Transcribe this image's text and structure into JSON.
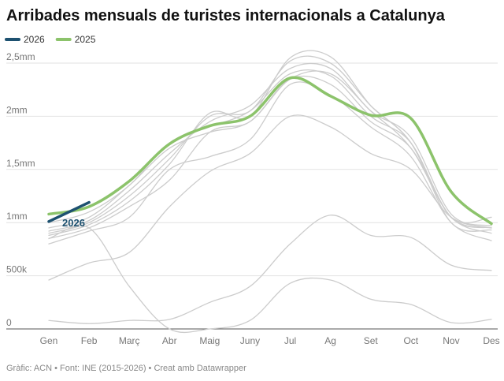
{
  "chart_data": {
    "type": "line",
    "title": "Arribades mensuals de turistes internacionals a Catalunya",
    "source": "Gràfic: ACN • Font: INE (2015-2026) • Creat amb Datawrapper",
    "annotation": "2026",
    "categories": [
      "Gen",
      "Feb",
      "Març",
      "Abr",
      "Maig",
      "Juny",
      "Jul",
      "Ag",
      "Set",
      "Oct",
      "Nov",
      "Des"
    ],
    "ylim": [
      0,
      2500000
    ],
    "yticks": [
      0,
      {
        "value": 500000,
        "label": "500k"
      },
      {
        "value": 1000000,
        "label": "1mm"
      },
      {
        "value": 1500000,
        "label": "1,5mm"
      },
      {
        "value": 2000000,
        "label": "2mm"
      },
      {
        "value": 2500000,
        "label": "2,5mm"
      }
    ],
    "grid": true,
    "series": [
      {
        "name": "2026",
        "color": "#1d5170",
        "values": [
          1010000,
          1190000,
          null,
          null,
          null,
          null,
          null,
          null,
          null,
          null,
          null,
          null
        ]
      },
      {
        "name": "2025",
        "color": "#8cc36b",
        "values": [
          1080000,
          1150000,
          1390000,
          1740000,
          1910000,
          2000000,
          2360000,
          2190000,
          2010000,
          1980000,
          1290000,
          990000
        ]
      },
      {
        "color": "#cccccc",
        "values": [
          800000,
          920000,
          1050000,
          1500000,
          1620000,
          1780000,
          2300000,
          2200000,
          1900000,
          1620000,
          1000000,
          830000
        ]
      },
      {
        "color": "#cccccc",
        "values": [
          850000,
          950000,
          1150000,
          1400000,
          1850000,
          1950000,
          2350000,
          2400000,
          2050000,
          1700000,
          1050000,
          900000
        ]
      },
      {
        "color": "#cccccc",
        "values": [
          880000,
          980000,
          1200000,
          1550000,
          2030000,
          2000000,
          2550000,
          2560000,
          2100000,
          1750000,
          1000000,
          930000
        ]
      },
      {
        "color": "#cccccc",
        "values": [
          900000,
          1000000,
          1250000,
          1600000,
          2000000,
          2050000,
          2520000,
          2500000,
          2100000,
          1750000,
          1050000,
          950000
        ]
      },
      {
        "color": "#cccccc",
        "values": [
          920000,
          1020000,
          1300000,
          1650000,
          1950000,
          2100000,
          2450000,
          2450000,
          2050000,
          1800000,
          1080000,
          970000
        ]
      },
      {
        "color": "#cccccc",
        "values": [
          850000,
          950000,
          400000,
          0,
          0,
          80000,
          430000,
          460000,
          280000,
          230000,
          60000,
          90000
        ]
      },
      {
        "color": "#cccccc",
        "values": [
          80000,
          50000,
          80000,
          90000,
          250000,
          400000,
          800000,
          1070000,
          880000,
          860000,
          600000,
          550000
        ]
      },
      {
        "color": "#cccccc",
        "values": [
          460000,
          620000,
          720000,
          1150000,
          1480000,
          1650000,
          2000000,
          1900000,
          1650000,
          1500000,
          1050000,
          950000
        ]
      },
      {
        "color": "#cccccc",
        "values": [
          950000,
          1050000,
          1350000,
          1700000,
          1850000,
          1950000,
          2350000,
          2300000,
          1950000,
          1700000,
          1050000,
          950000
        ]
      },
      {
        "color": "#cccccc",
        "values": [
          1000000,
          1100000,
          1350000,
          1750000,
          1900000,
          2050000,
          2400000,
          2380000,
          2000000,
          1750000,
          1050000,
          1050000
        ]
      }
    ]
  }
}
